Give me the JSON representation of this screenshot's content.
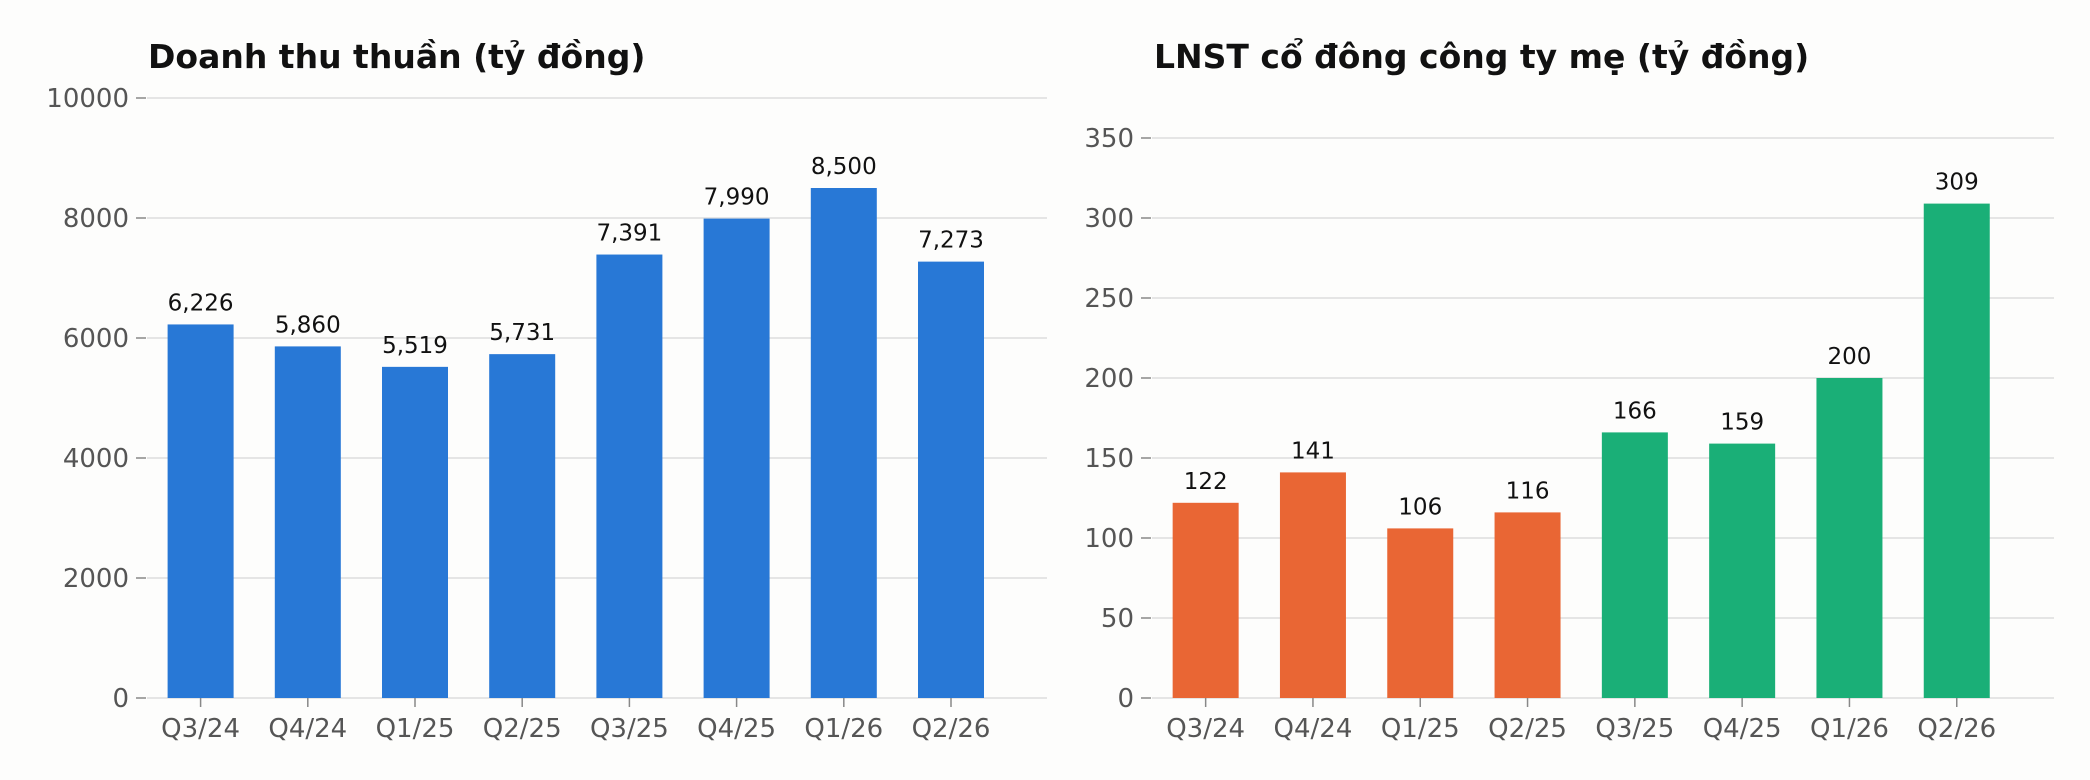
{
  "chart_data": [
    {
      "type": "bar",
      "title": "Doanh thu thuần (tỷ đồng)",
      "xlabel": "",
      "ylabel": "",
      "categories": [
        "Q3/24",
        "Q4/24",
        "Q1/25",
        "Q2/25",
        "Q3/25",
        "Q4/25",
        "Q1/26",
        "Q2/26"
      ],
      "values": [
        6226,
        5860,
        5519,
        5731,
        7391,
        7990,
        8500,
        7273
      ],
      "value_labels": [
        "6,226",
        "5,860",
        "5,519",
        "5,731",
        "7,391",
        "7,990",
        "8,500",
        "7,273"
      ],
      "ylim": [
        0,
        10000
      ],
      "yticks": [
        0,
        2000,
        4000,
        6000,
        8000,
        10000
      ],
      "grid": true,
      "bar_colors": [
        "#2878d6",
        "#2878d6",
        "#2878d6",
        "#2878d6",
        "#2878d6",
        "#2878d6",
        "#2878d6",
        "#2878d6"
      ]
    },
    {
      "type": "bar",
      "title": "LNST cổ đông công ty mẹ (tỷ đồng)",
      "xlabel": "",
      "ylabel": "",
      "categories": [
        "Q3/24",
        "Q4/24",
        "Q1/25",
        "Q2/25",
        "Q3/25",
        "Q4/25",
        "Q1/26",
        "Q2/26"
      ],
      "values": [
        122,
        141,
        106,
        116,
        166,
        159,
        200,
        309
      ],
      "value_labels": [
        "122",
        "141",
        "106",
        "116",
        "166",
        "159",
        "200",
        "309"
      ],
      "ylim": [
        0,
        375
      ],
      "yticks": [
        0,
        50,
        100,
        150,
        200,
        250,
        300,
        350
      ],
      "grid": true,
      "bar_colors": [
        "#e96634",
        "#e96634",
        "#e96634",
        "#e96634",
        "#1aaf77",
        "#1aaf77",
        "#1aaf77",
        "#1aaf77"
      ]
    }
  ]
}
